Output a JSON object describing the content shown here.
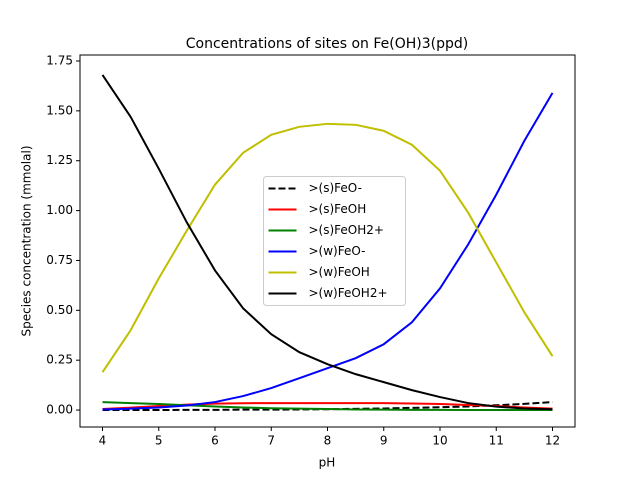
{
  "chart_data": {
    "type": "line",
    "title": "Concentrations of sites on Fe(OH)3(ppd)",
    "x_label": "pH",
    "y_label": "Species concentration (mmolal)",
    "x": [
      4,
      4.5,
      5,
      5.5,
      6,
      6.5,
      7,
      7.5,
      8,
      8.5,
      9,
      9.5,
      10,
      10.5,
      11,
      11.5,
      12
    ],
    "xlim": [
      3.6,
      12.4
    ],
    "xticks": [
      4,
      5,
      6,
      7,
      8,
      9,
      10,
      11,
      12
    ],
    "ylim": [
      -0.085,
      1.78
    ],
    "yticks": [
      {
        "value": 0,
        "label": "0.00"
      },
      {
        "value": 0.25,
        "label": "0.25"
      },
      {
        "value": 0.5,
        "label": "0.50"
      },
      {
        "value": 0.75,
        "label": "0.75"
      },
      {
        "value": 1,
        "label": "1.00"
      },
      {
        "value": 1.25,
        "label": "1.25"
      },
      {
        "value": 1.5,
        "label": "1.50"
      },
      {
        "value": 1.75,
        "label": "1.75"
      }
    ],
    "legend": "center",
    "series": [
      {
        "name": ">(s)FeO-",
        "color": "#000000",
        "linestyle": "dashed",
        "values": [
          0,
          0,
          0,
          0.001,
          0.001,
          0.002,
          0.002,
          0.003,
          0.004,
          0.006,
          0.008,
          0.011,
          0.014,
          0.018,
          0.024,
          0.031,
          0.04
        ]
      },
      {
        "name": ">(s)FeOH",
        "color": "#ff0000",
        "linestyle": "solid",
        "values": [
          0.005,
          0.012,
          0.02,
          0.027,
          0.032,
          0.034,
          0.035,
          0.035,
          0.035,
          0.035,
          0.035,
          0.033,
          0.03,
          0.025,
          0.02,
          0.013,
          0.007
        ]
      },
      {
        "name": ">(s)FeOH2+",
        "color": "#008000",
        "linestyle": "solid",
        "values": [
          0.04,
          0.035,
          0.03,
          0.024,
          0.018,
          0.013,
          0.009,
          0.007,
          0.005,
          0.003,
          0.002,
          0.001,
          0.001,
          0,
          0,
          0,
          0
        ]
      },
      {
        "name": ">(w)FeO-",
        "color": "#0000ff",
        "linestyle": "solid",
        "values": [
          0.003,
          0.007,
          0.013,
          0.023,
          0.04,
          0.07,
          0.11,
          0.16,
          0.21,
          0.26,
          0.33,
          0.44,
          0.61,
          0.83,
          1.08,
          1.35,
          1.59
        ]
      },
      {
        "name": ">(w)FeOH",
        "color": "#bfbf00",
        "linestyle": "solid",
        "values": [
          0.19,
          0.4,
          0.66,
          0.9,
          1.13,
          1.29,
          1.38,
          1.42,
          1.435,
          1.43,
          1.4,
          1.33,
          1.2,
          0.99,
          0.74,
          0.49,
          0.27
        ]
      },
      {
        "name": ">(w)FeOH2+",
        "color": "#000000",
        "linestyle": "solid",
        "values": [
          1.68,
          1.47,
          1.21,
          0.94,
          0.7,
          0.51,
          0.38,
          0.29,
          0.23,
          0.18,
          0.14,
          0.1,
          0.065,
          0.035,
          0.017,
          0.008,
          0.004
        ]
      }
    ]
  }
}
